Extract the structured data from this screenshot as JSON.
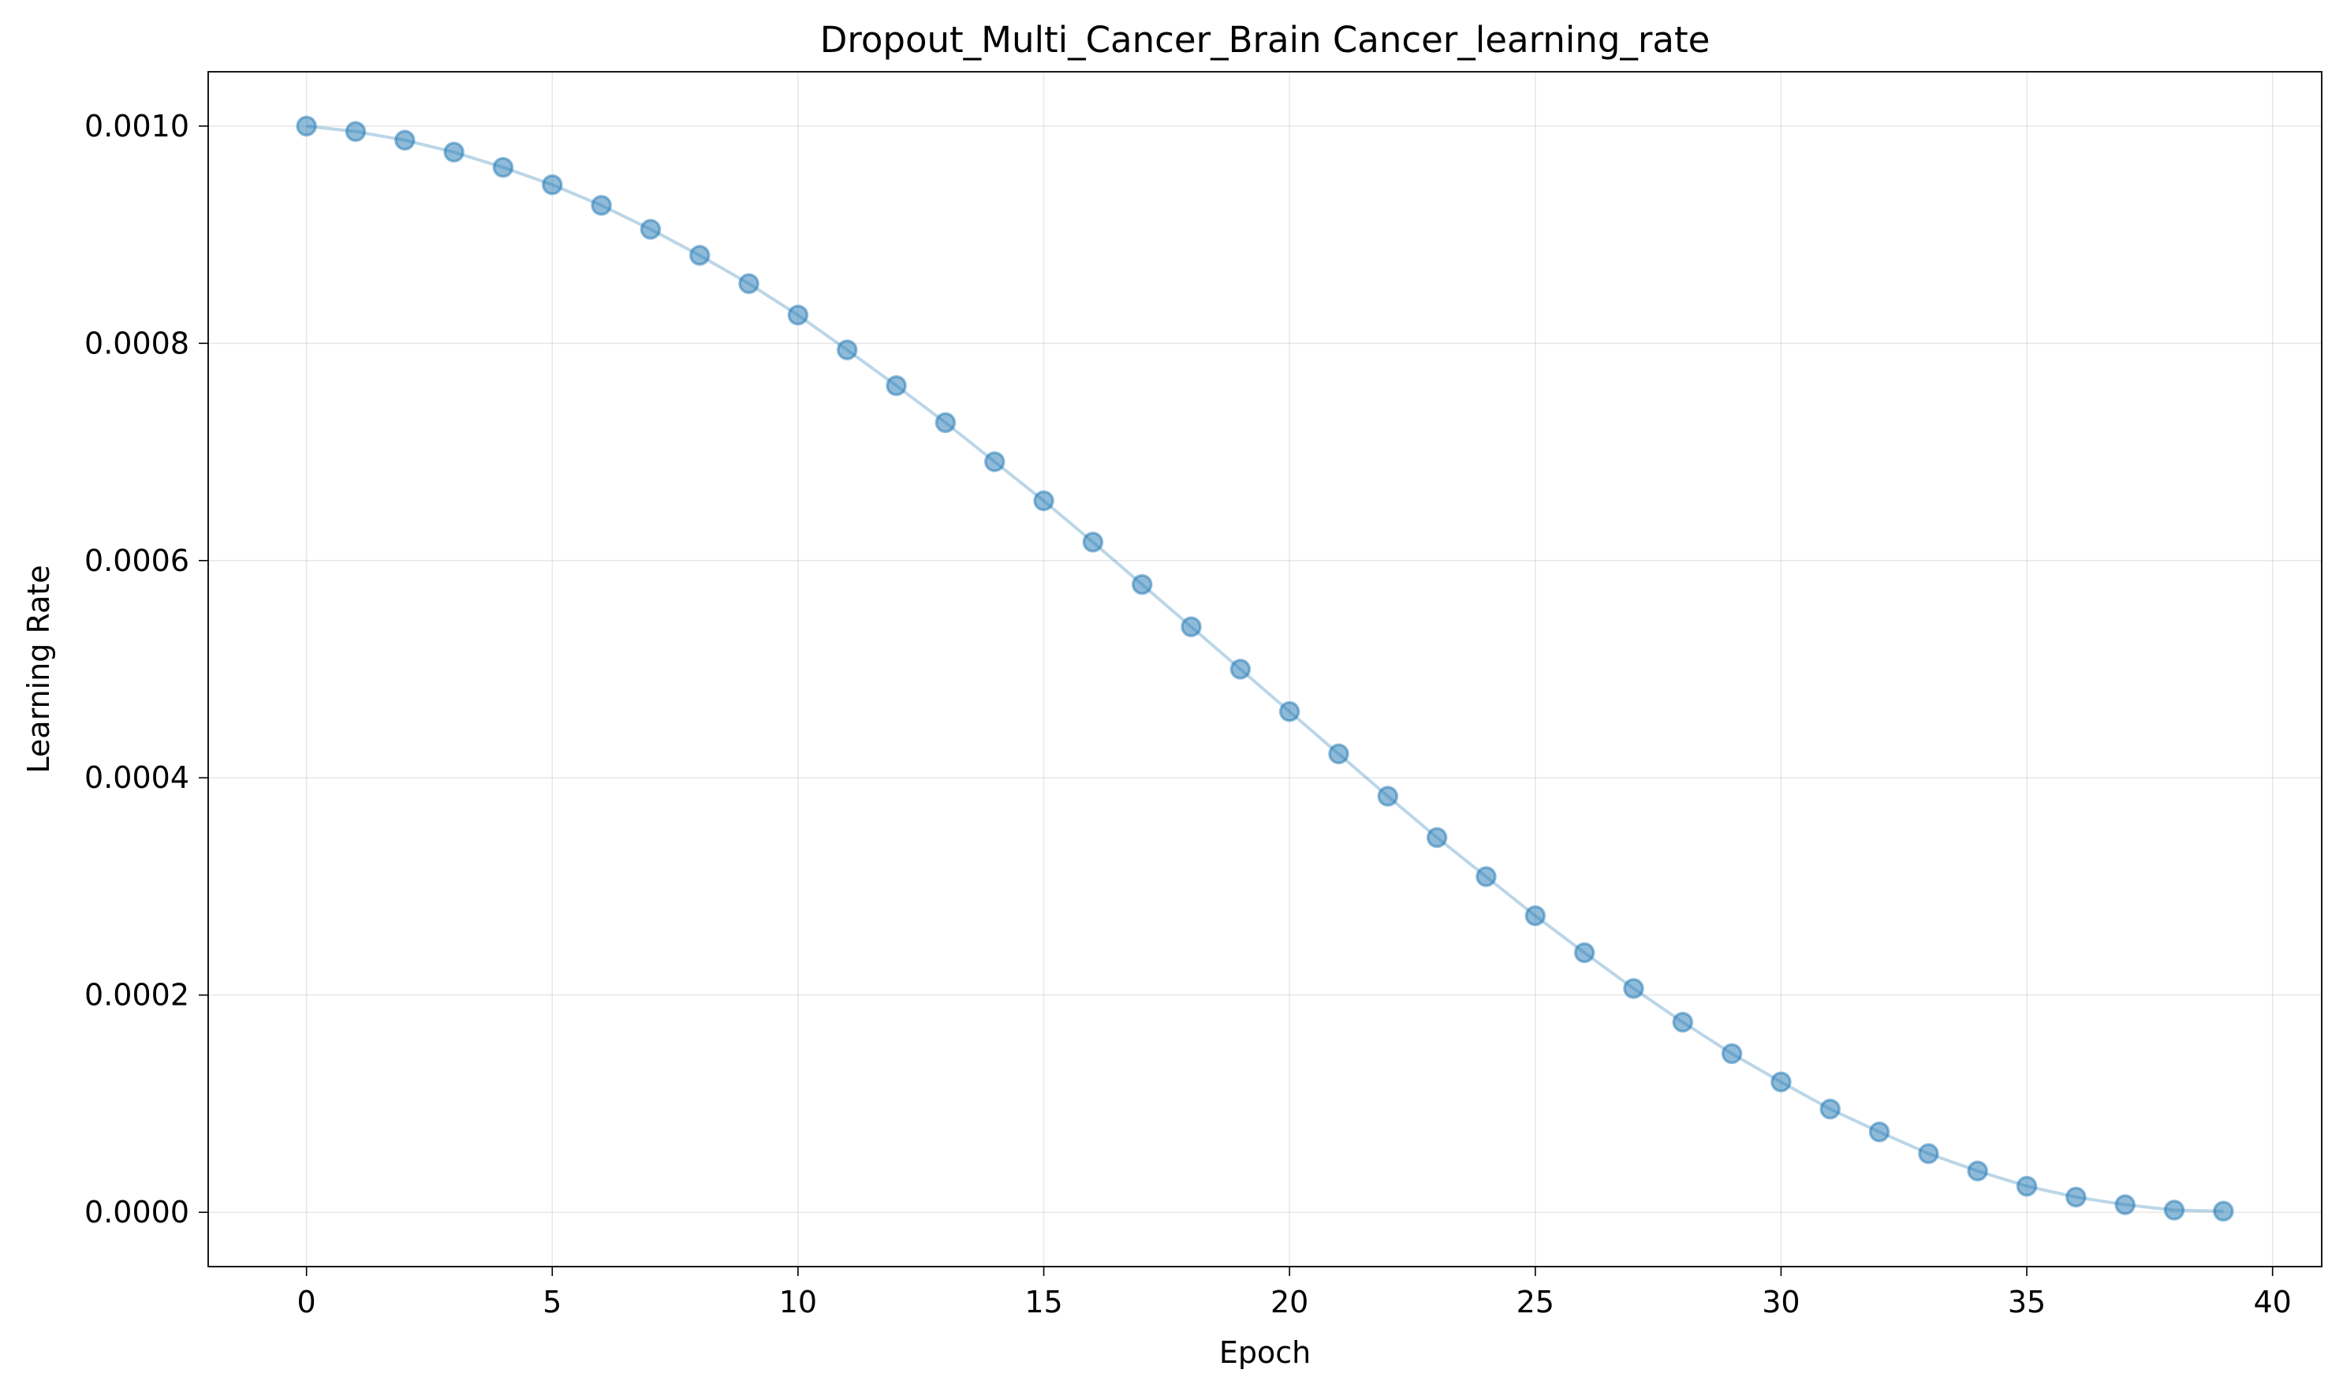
{
  "chart_data": {
    "type": "line",
    "title": "Dropout_Multi_Cancer_Brain Cancer_learning_rate",
    "xlabel": "Epoch",
    "ylabel": "Learning Rate",
    "xlim": [
      -2,
      41
    ],
    "ylim": [
      -5e-05,
      0.00105
    ],
    "x_ticks": [
      0,
      5,
      10,
      15,
      20,
      25,
      30,
      35,
      40
    ],
    "x_tick_labels": [
      "0",
      "5",
      "10",
      "15",
      "20",
      "25",
      "30",
      "35",
      "40"
    ],
    "y_ticks": [
      0,
      0.0002,
      0.0004,
      0.0006,
      0.0008,
      0.001
    ],
    "y_tick_labels": [
      "0.0000",
      "0.0002",
      "0.0004",
      "0.0006",
      "0.0008",
      "0.0010"
    ],
    "grid": true,
    "legend": "none",
    "marker": "circle",
    "color": "#1f77b4",
    "x": [
      0,
      1,
      2,
      3,
      4,
      5,
      6,
      7,
      8,
      9,
      10,
      11,
      12,
      13,
      14,
      15,
      16,
      17,
      18,
      19,
      20,
      21,
      22,
      23,
      24,
      25,
      26,
      27,
      28,
      29,
      30,
      31,
      32,
      33,
      34,
      35,
      36,
      37,
      38,
      39
    ],
    "series": [
      {
        "values": [
          0.001,
          0.000995,
          0.000987,
          0.000976,
          0.000962,
          0.000946,
          0.000927,
          0.000905,
          0.000881,
          0.000855,
          0.000826,
          0.000794,
          0.000761,
          0.000727,
          0.000691,
          0.000655,
          0.000617,
          0.000578,
          0.000539,
          0.0005,
          0.000461,
          0.000422,
          0.000383,
          0.000345,
          0.000309,
          0.000273,
          0.000239,
          0.000206,
          0.000175,
          0.000146,
          0.00012,
          9.5e-05,
          7.4e-05,
          5.4e-05,
          3.8e-05,
          2.4e-05,
          1.4e-05,
          7e-06,
          2e-06,
          1e-06
        ]
      }
    ]
  }
}
